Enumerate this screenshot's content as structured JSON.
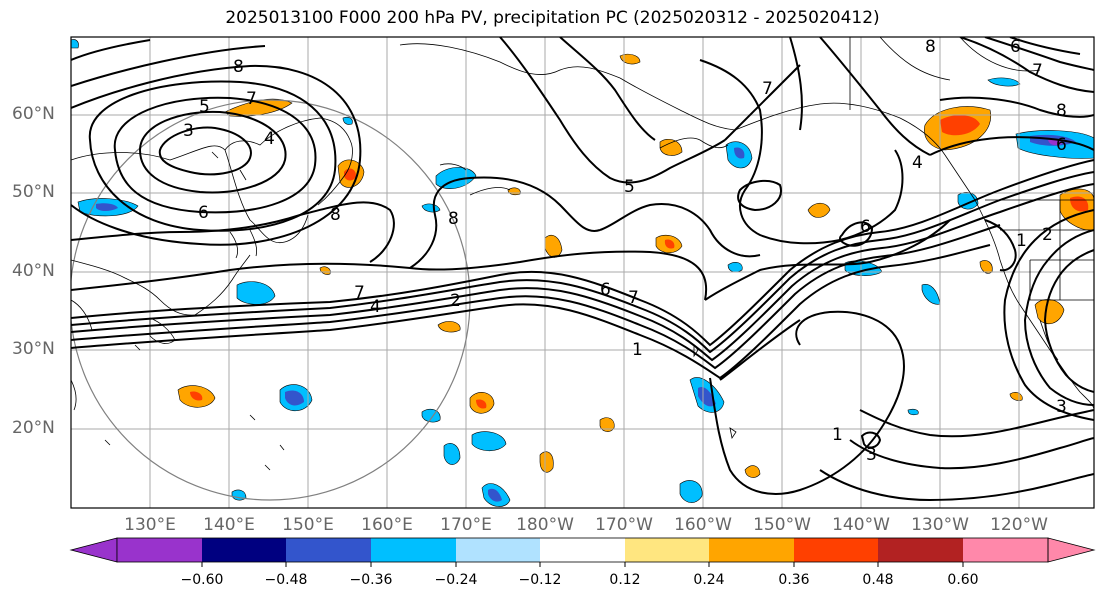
{
  "title": "2025013100 F000 200 hPa PV, precipitation PC (2025020312 - 2025020412)",
  "lat_labels": [
    "60°N",
    "50°N",
    "40°N",
    "30°N",
    "20°N"
  ],
  "lon_labels": [
    "130°E",
    "140°E",
    "150°E",
    "160°E",
    "170°E",
    "180°W",
    "170°W",
    "160°W",
    "150°W",
    "140°W",
    "130°W",
    "120°W"
  ],
  "contour_labels": {
    "low_center": "3",
    "low_ring": "4",
    "ring5": "5",
    "ring6": "6",
    "ring7": "7",
    "ring8": "8",
    "jet7a": "7",
    "jet4": "4",
    "jet2": "2",
    "jet6": "6",
    "jet7b": "7",
    "jet1": "1",
    "bering8": "8",
    "alaska5": "5",
    "gulf6": "6",
    "nw7": "7",
    "ne8a": "8",
    "ne6": "6",
    "ne7": "7",
    "ne8b": "8",
    "west4": "4",
    "west1": "1",
    "west2": "2",
    "trop1": "1",
    "trop3": "3",
    "east3": "3",
    "pac6": "6",
    "pac1": "1"
  },
  "colorbar": {
    "ticks": [
      "−0.60",
      "−0.48",
      "−0.36",
      "−0.24",
      "−0.12",
      "0.12",
      "0.24",
      "0.36",
      "0.48",
      "0.60"
    ],
    "colors": [
      "#9933cc",
      "#000080",
      "#3355cc",
      "#00bfff",
      "#b0e2ff",
      "#ffffff",
      "#ffe680",
      "#ffa500",
      "#ff4000",
      "#b22222",
      "#ff88aa"
    ]
  }
}
